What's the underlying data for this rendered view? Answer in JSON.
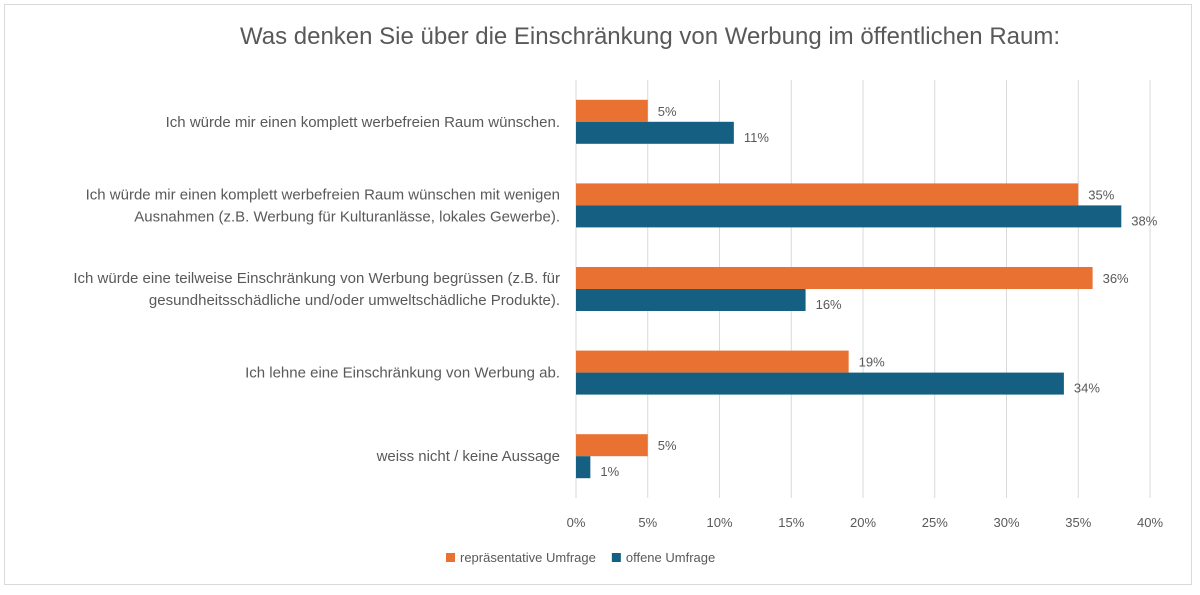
{
  "chart_data": {
    "type": "bar",
    "orientation": "horizontal",
    "title": "Was denken Sie über die Einschränkung von Werbung im öffentlichen Raum:",
    "xlabel": "",
    "ylabel": "",
    "categories": [
      [
        "Ich würde mir einen komplett werbefreien Raum wünschen."
      ],
      [
        "Ich würde mir einen komplett werbefreien Raum wünschen mit wenigen",
        "Ausnahmen (z.B. Werbung für Kulturanlässe, lokales Gewerbe)."
      ],
      [
        "Ich würde eine teilweise Einschränkung von Werbung begrüssen (z.B. für",
        "gesundheitsschädliche und/oder umweltschädliche Produkte)."
      ],
      [
        "Ich lehne eine Einschränkung von Werbung ab."
      ],
      [
        "weiss nicht / keine Aussage"
      ]
    ],
    "series": [
      {
        "name": "repräsentative Umfrage",
        "color": "#E97132",
        "values": [
          5,
          35,
          36,
          19,
          5
        ]
      },
      {
        "name": "offene Umfrage",
        "color": "#156082",
        "values": [
          11,
          38,
          16,
          34,
          1
        ]
      }
    ],
    "xlim": [
      0,
      40
    ],
    "xticks": [
      0,
      5,
      10,
      15,
      20,
      25,
      30,
      35,
      40
    ],
    "tick_suffix": "%",
    "grid": true,
    "legend": "bottom-left"
  }
}
